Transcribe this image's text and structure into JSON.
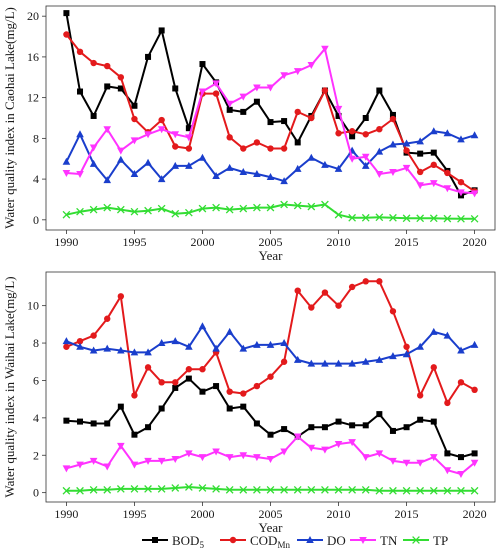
{
  "chart_data": [
    {
      "type": "line",
      "ylabel": "Water quality index in Caohai Lake(mg/L)",
      "xlabel": "Year",
      "xlim": [
        1988.5,
        2021.5
      ],
      "ylim": [
        -1,
        21
      ],
      "x_ticks": [
        1990,
        1995,
        2000,
        2005,
        2010,
        2015,
        2020
      ],
      "y_ticks": [
        0,
        4,
        8,
        12,
        16,
        20
      ],
      "grid": false,
      "x": [
        1990,
        1991,
        1992,
        1993,
        1994,
        1995,
        1996,
        1997,
        1998,
        1999,
        2000,
        2001,
        2002,
        2003,
        2004,
        2005,
        2006,
        2007,
        2008,
        2009,
        2010,
        2011,
        2012,
        2013,
        2014,
        2015,
        2016,
        2017,
        2018,
        2019,
        2020
      ],
      "series": [
        {
          "name": "BOD5",
          "color": "#000000",
          "marker": "square",
          "values": [
            20.3,
            12.6,
            10.2,
            13.1,
            12.9,
            11.2,
            16.0,
            18.6,
            12.9,
            9.0,
            15.3,
            13.5,
            10.8,
            10.6,
            11.6,
            9.6,
            9.7,
            7.6,
            10.2,
            12.7,
            10.2,
            8.2,
            10.0,
            12.7,
            10.3,
            6.6,
            6.5,
            6.6,
            4.8,
            2.4,
            2.9
          ]
        },
        {
          "name": "CODMn",
          "color": "#e31a1c",
          "marker": "circle",
          "values": [
            18.2,
            16.5,
            15.4,
            15.1,
            14.0,
            9.9,
            8.6,
            9.8,
            7.2,
            7.0,
            12.4,
            12.4,
            8.1,
            7.0,
            7.6,
            7.0,
            7.0,
            10.6,
            10.0,
            12.7,
            8.5,
            8.7,
            8.4,
            8.9,
            9.9,
            6.8,
            4.7,
            5.4,
            4.6,
            3.7,
            2.8
          ]
        },
        {
          "name": "DO",
          "color": "#1a3ecc",
          "marker": "triangle",
          "values": [
            5.7,
            8.4,
            5.5,
            3.9,
            5.9,
            4.5,
            5.6,
            4.0,
            5.3,
            5.3,
            6.1,
            4.3,
            5.1,
            4.7,
            4.5,
            4.2,
            3.8,
            5.0,
            6.1,
            5.4,
            5.0,
            6.8,
            5.3,
            6.7,
            7.4,
            7.5,
            7.7,
            8.7,
            8.5,
            7.9,
            8.3
          ]
        },
        {
          "name": "TN",
          "color": "#ff33ff",
          "marker": "triangle-down",
          "values": [
            4.6,
            4.5,
            7.1,
            8.9,
            6.8,
            7.8,
            8.4,
            8.9,
            8.4,
            8.1,
            12.6,
            13.4,
            11.4,
            12.1,
            13.0,
            13.0,
            14.2,
            14.6,
            15.2,
            16.8,
            10.9,
            6.0,
            6.2,
            4.5,
            4.7,
            5.1,
            3.4,
            3.6,
            3.1,
            2.7,
            2.6
          ]
        },
        {
          "name": "TP",
          "color": "#33dd33",
          "marker": "cross",
          "values": [
            0.5,
            0.8,
            1.0,
            1.2,
            1.0,
            0.8,
            0.9,
            1.1,
            0.6,
            0.7,
            1.1,
            1.2,
            1.0,
            1.1,
            1.2,
            1.2,
            1.5,
            1.4,
            1.3,
            1.5,
            0.5,
            0.2,
            0.2,
            0.25,
            0.2,
            0.15,
            0.15,
            0.15,
            0.12,
            0.1,
            0.1
          ]
        }
      ]
    },
    {
      "type": "line",
      "ylabel": "Water quality index in Waihai Lake(mg/L)",
      "xlabel": "Year",
      "xlim": [
        1988.5,
        2021.5
      ],
      "ylim": [
        -0.5,
        11.8
      ],
      "x_ticks": [
        1990,
        1995,
        2000,
        2005,
        2010,
        2015,
        2020
      ],
      "y_ticks": [
        0,
        2,
        4,
        6,
        8,
        10
      ],
      "grid": false,
      "x": [
        1990,
        1991,
        1992,
        1993,
        1994,
        1995,
        1996,
        1997,
        1998,
        1999,
        2000,
        2001,
        2002,
        2003,
        2004,
        2005,
        2006,
        2007,
        2008,
        2009,
        2010,
        2011,
        2012,
        2013,
        2014,
        2015,
        2016,
        2017,
        2018,
        2019,
        2020
      ],
      "series": [
        {
          "name": "BOD5",
          "color": "#000000",
          "marker": "square",
          "values": [
            3.85,
            3.8,
            3.7,
            3.7,
            4.6,
            3.1,
            3.5,
            4.5,
            5.6,
            6.1,
            5.4,
            5.7,
            4.5,
            4.6,
            3.7,
            3.1,
            3.4,
            3.0,
            3.5,
            3.5,
            3.8,
            3.6,
            3.6,
            4.2,
            3.3,
            3.5,
            3.9,
            3.8,
            2.1,
            1.9,
            2.1
          ]
        },
        {
          "name": "CODMn",
          "color": "#e31a1c",
          "marker": "circle",
          "values": [
            7.8,
            8.1,
            8.4,
            9.3,
            10.5,
            5.2,
            6.7,
            5.9,
            5.9,
            6.6,
            6.6,
            7.5,
            5.4,
            5.3,
            5.7,
            6.2,
            7.0,
            10.8,
            9.9,
            10.7,
            10.0,
            11.0,
            11.3,
            11.3,
            9.7,
            7.8,
            5.2,
            6.7,
            4.8,
            5.9,
            5.5
          ]
        },
        {
          "name": "DO",
          "color": "#1a3ecc",
          "marker": "triangle",
          "values": [
            8.1,
            7.8,
            7.6,
            7.7,
            7.6,
            7.5,
            7.5,
            8.0,
            8.1,
            7.8,
            8.9,
            7.7,
            8.6,
            7.7,
            7.9,
            7.9,
            8.0,
            7.1,
            6.9,
            6.9,
            6.9,
            6.9,
            7.0,
            7.1,
            7.3,
            7.4,
            7.8,
            8.6,
            8.4,
            7.6,
            7.9
          ]
        },
        {
          "name": "TN",
          "color": "#ff33ff",
          "marker": "triangle-down",
          "values": [
            1.3,
            1.5,
            1.7,
            1.4,
            2.5,
            1.5,
            1.7,
            1.7,
            1.8,
            2.1,
            1.9,
            2.2,
            1.9,
            2.0,
            1.9,
            1.8,
            2.2,
            3.0,
            2.4,
            2.3,
            2.6,
            2.7,
            1.9,
            2.1,
            1.7,
            1.6,
            1.6,
            1.9,
            1.2,
            1.0,
            1.6
          ]
        },
        {
          "name": "TP",
          "color": "#33dd33",
          "marker": "cross",
          "values": [
            0.1,
            0.1,
            0.15,
            0.15,
            0.2,
            0.2,
            0.2,
            0.2,
            0.25,
            0.3,
            0.25,
            0.2,
            0.15,
            0.15,
            0.15,
            0.15,
            0.15,
            0.15,
            0.15,
            0.15,
            0.15,
            0.15,
            0.15,
            0.1,
            0.1,
            0.1,
            0.1,
            0.1,
            0.1,
            0.1,
            0.1
          ]
        }
      ]
    }
  ],
  "legend": {
    "position": "bottom",
    "items": [
      {
        "label": "BOD",
        "sub": "5",
        "color": "#000000",
        "marker": "square"
      },
      {
        "label": "COD",
        "sub": "Mn",
        "color": "#e31a1c",
        "marker": "circle"
      },
      {
        "label": "DO",
        "sub": "",
        "color": "#1a3ecc",
        "marker": "triangle"
      },
      {
        "label": "TN",
        "sub": "",
        "color": "#ff33ff",
        "marker": "triangle-down"
      },
      {
        "label": "TP",
        "sub": "",
        "color": "#33dd33",
        "marker": "cross"
      }
    ]
  }
}
